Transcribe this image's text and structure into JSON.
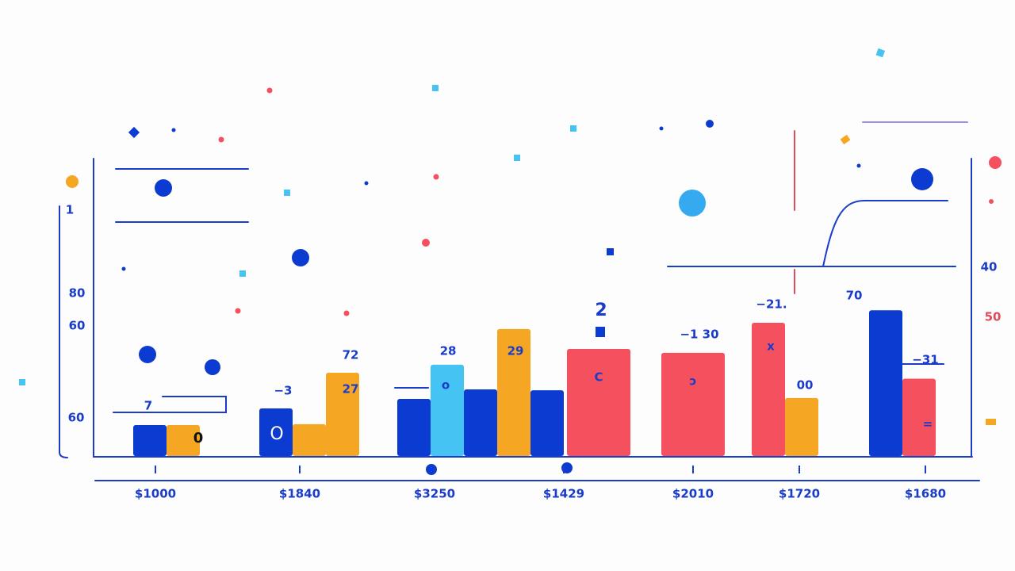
{
  "chart_data": {
    "type": "bar",
    "categories": [
      "$1000",
      "$1840",
      "$3250",
      "$1429",
      "$2010",
      "$1720",
      "$1680"
    ],
    "ylim": [
      0,
      100
    ],
    "series": [
      {
        "color": "#0b3bd0",
        "values": [
          10.4,
          16,
          19.2,
          null,
          null,
          null,
          49
        ]
      },
      {
        "color": "#f5a623",
        "values": [
          10.4,
          10.7,
          null,
          null,
          null,
          null,
          null
        ]
      },
      {
        "color": "#f5a623",
        "values": [
          null,
          28,
          null,
          null,
          null,
          null,
          null
        ]
      },
      {
        "color": "#45c3f2",
        "values": [
          null,
          null,
          30.7,
          null,
          null,
          null,
          null
        ]
      },
      {
        "color": "#0b3bd0",
        "values": [
          null,
          null,
          22.4,
          null,
          null,
          null,
          null
        ]
      },
      {
        "color": "#f5a623",
        "values": [
          null,
          null,
          42.7,
          null,
          null,
          null,
          null
        ]
      },
      {
        "color": "#0b3bd0",
        "values": [
          null,
          null,
          22.1,
          null,
          null,
          null,
          null
        ]
      },
      {
        "color": "#f5505e",
        "values": [
          null,
          null,
          null,
          36,
          34.7,
          44.8,
          26
        ]
      },
      {
        "color": "#f5a623",
        "values": [
          null,
          null,
          null,
          null,
          null,
          19.5,
          null
        ]
      }
    ],
    "annotations": [
      "7",
      "0",
      "O",
      "−3",
      "72",
      "27",
      "28",
      "o",
      "29",
      "2",
      "C",
      "−1 30",
      "ɔ",
      "−21.",
      "x",
      "70",
      "00",
      "−31",
      "="
    ],
    "left_labels": [
      "1",
      "80",
      "60",
      "60"
    ],
    "right_labels": [
      "40",
      "50"
    ]
  }
}
